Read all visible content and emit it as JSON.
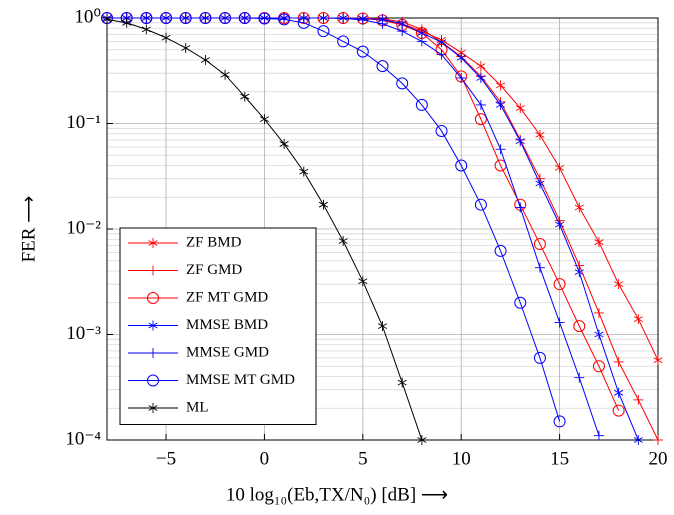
{
  "chart_data": {
    "type": "line",
    "x_label": "10 log₁₀(Eb,TX/N₀) [dB] ⟶",
    "y_label": "FER ⟶",
    "y_scale": "log",
    "grid": true,
    "legend": "lower left",
    "xlim": [
      -8,
      20
    ],
    "xticks": [
      {
        "value": -5,
        "label": "−5"
      },
      0,
      5,
      10,
      15,
      20
    ],
    "ylim": [
      0.0001,
      1
    ],
    "yticks": [
      {
        "value": 0.0001,
        "label": "10⁻⁴"
      },
      {
        "value": 0.001,
        "label": "10⁻³"
      },
      {
        "value": 0.01,
        "label": "10⁻²"
      },
      {
        "value": 0.1,
        "label": "10⁻¹"
      },
      {
        "value": 1,
        "label": "10⁰"
      }
    ],
    "x": [
      -8,
      -7,
      -6,
      -5,
      -4,
      -3,
      -2,
      -1,
      0,
      1,
      2,
      3,
      4,
      5,
      6,
      7,
      8,
      9,
      10,
      11,
      12,
      13,
      14,
      15,
      16,
      17,
      18,
      19,
      20
    ],
    "series": [
      {
        "name": "ZF BMD",
        "color": "#ff0000",
        "marker": "asterisk",
        "values": [
          1,
          1,
          1,
          1,
          1,
          1,
          1,
          1,
          1,
          1,
          1,
          1,
          1,
          0.99,
          0.97,
          0.88,
          0.75,
          0.62,
          0.47,
          0.35,
          0.23,
          0.14,
          0.078,
          0.038,
          0.016,
          0.0075,
          0.003,
          0.0014,
          0.00057
        ]
      },
      {
        "name": "ZF GMD",
        "color": "#ff0000",
        "marker": "plus",
        "values": [
          1,
          1,
          1,
          1,
          1,
          1,
          1,
          1,
          1,
          1,
          1,
          1,
          1,
          1,
          0.98,
          0.92,
          0.78,
          0.59,
          0.43,
          0.28,
          0.16,
          0.07,
          0.03,
          0.012,
          0.0045,
          0.0016,
          0.00055,
          0.00024,
          0.0001
        ]
      },
      {
        "name": "ZF MT GMD",
        "color": "#ff0000",
        "marker": "circle",
        "values": [
          1,
          1,
          1,
          1,
          1,
          1,
          1,
          1,
          1,
          1,
          1,
          1,
          1,
          0.99,
          0.95,
          0.86,
          0.72,
          0.5,
          0.28,
          0.11,
          0.04,
          0.017,
          0.0072,
          0.003,
          0.0012,
          0.0005,
          0.00019,
          null,
          null
        ]
      },
      {
        "name": "MMSE BMD",
        "color": "#0000ff",
        "marker": "asterisk",
        "values": [
          1,
          1,
          1,
          1,
          1,
          1,
          1,
          1,
          1,
          1,
          1,
          1,
          1,
          0.99,
          0.97,
          0.88,
          0.72,
          0.59,
          0.42,
          0.27,
          0.15,
          0.068,
          0.027,
          0.011,
          0.0039,
          0.001,
          0.00028,
          0.0001,
          null
        ]
      },
      {
        "name": "MMSE GMD",
        "color": "#0000ff",
        "marker": "plus",
        "values": [
          1,
          1,
          1,
          1,
          1,
          1,
          1,
          1,
          1,
          1,
          1,
          1,
          0.99,
          0.96,
          0.88,
          0.75,
          0.6,
          0.45,
          0.27,
          0.15,
          0.057,
          0.016,
          0.0043,
          0.0013,
          0.00039,
          0.00011,
          null,
          null,
          null
        ]
      },
      {
        "name": "MMSE MT GMD",
        "color": "#0000ff",
        "marker": "circle",
        "values": [
          1,
          1,
          1,
          1,
          1,
          1,
          1,
          1,
          0.99,
          0.97,
          0.9,
          0.75,
          0.6,
          0.48,
          0.35,
          0.24,
          0.15,
          0.085,
          0.04,
          0.017,
          0.0062,
          0.002,
          0.0006,
          0.00015,
          null,
          null,
          null,
          null,
          null
        ]
      },
      {
        "name": "ML",
        "color": "#000000",
        "marker": "asterisk",
        "values": [
          0.97,
          0.9,
          0.78,
          0.65,
          0.52,
          0.4,
          0.29,
          0.18,
          0.11,
          0.064,
          0.035,
          0.017,
          0.0077,
          0.0032,
          0.0012,
          0.00035,
          0.0001,
          null,
          null,
          null,
          null,
          null,
          null,
          null,
          null,
          null,
          null,
          null,
          null
        ]
      }
    ]
  }
}
